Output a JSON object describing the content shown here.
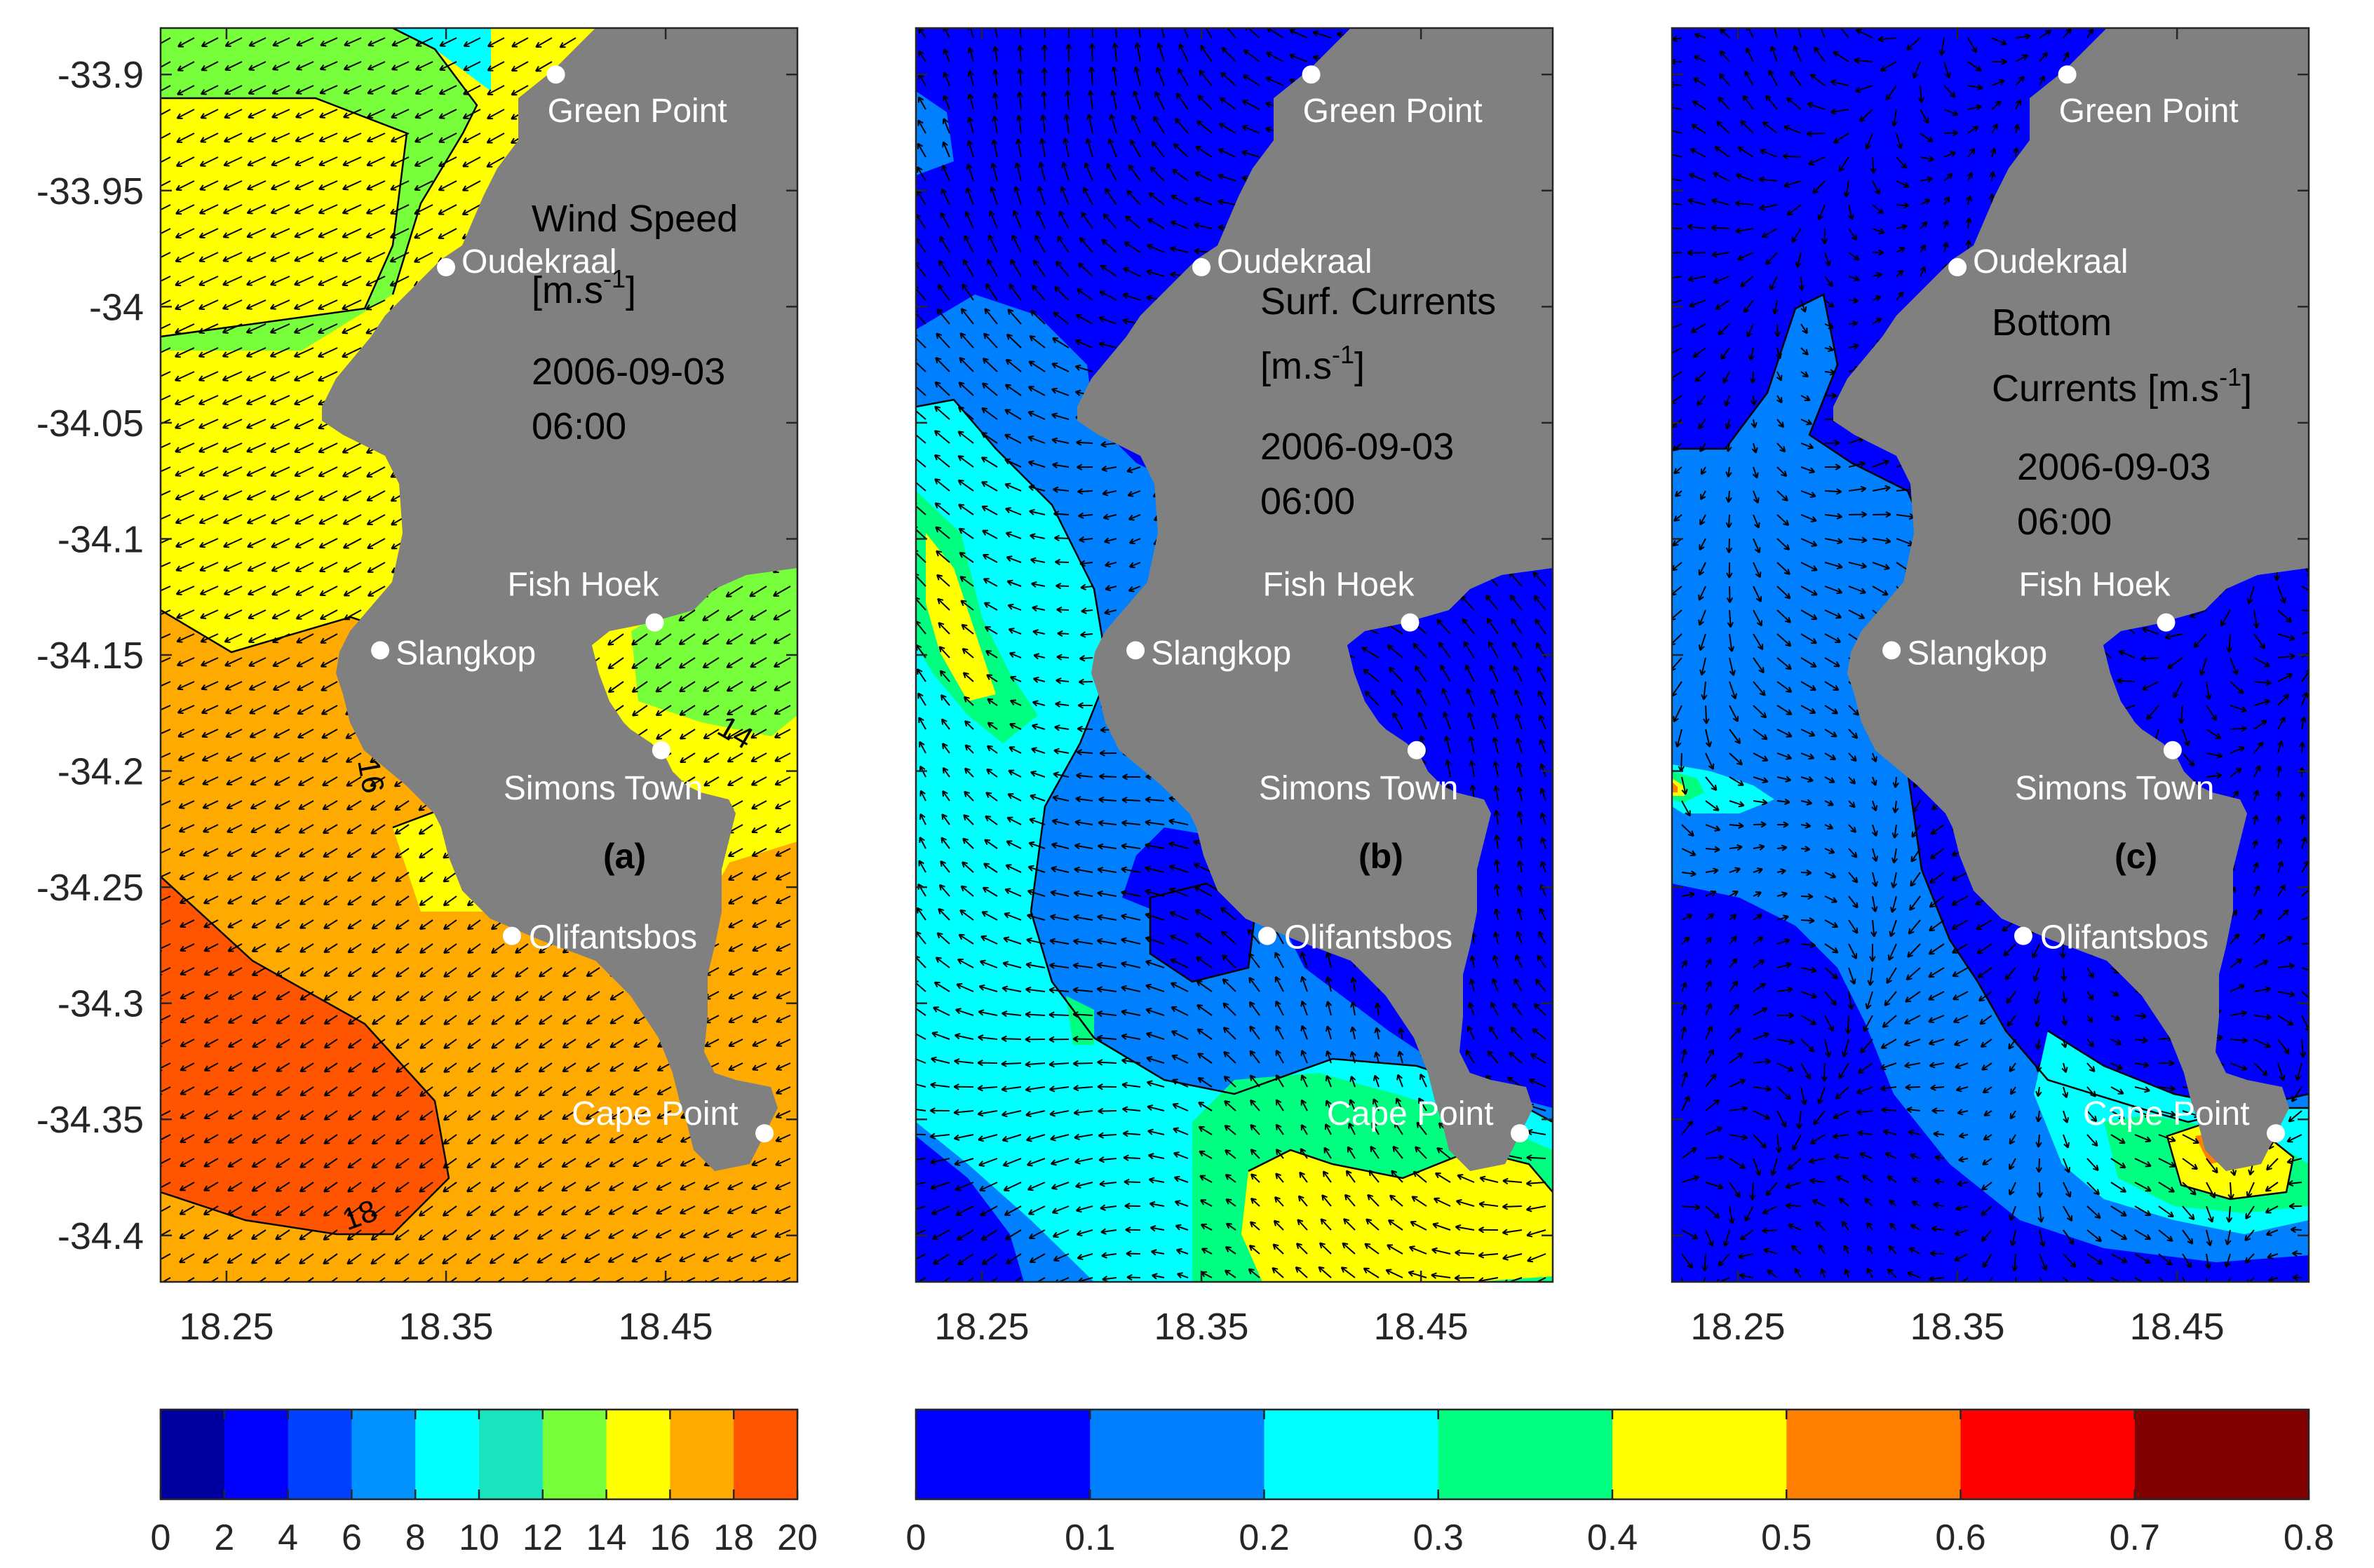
{
  "panels": [
    {
      "id": "a",
      "panel_label": "(a)",
      "field_title": [
        "Wind Speed",
        "[m.s",
        "-1",
        "]"
      ],
      "timestamp": [
        "2006-09-03",
        "06:00"
      ],
      "contour_labels": [
        "14",
        "16",
        "18"
      ],
      "colors": [
        "#77ff3c",
        "#ffff00",
        "#ffaa00",
        "#ff5500",
        "#00ffff",
        "#1ae3c0",
        "#00aaff"
      ]
    },
    {
      "id": "b",
      "panel_label": "(b)",
      "field_title": [
        "Surf. Currents",
        "[m.s",
        "-1",
        "]"
      ],
      "timestamp": [
        "2006-09-03",
        "06:00"
      ],
      "colors": [
        "#0000ff",
        "#0080ff",
        "#00ffff",
        "#00ff80",
        "#ffff00"
      ]
    },
    {
      "id": "c",
      "panel_label": "(c)",
      "field_title": [
        "Bottom",
        "Currents [m.s",
        "-1",
        "]"
      ],
      "timestamp": [
        "2006-09-03",
        "06:00"
      ],
      "colors": [
        "#0000ff",
        "#0080ff",
        "#00ffff",
        "#00ff80",
        "#ffff00",
        "#ff8000"
      ]
    }
  ],
  "places": [
    "Green Point",
    "Oudekraal",
    "Fish Hoek",
    "Slangkop",
    "Simons Town",
    "Olifantsbos",
    "Cape Point"
  ],
  "chart_data": {
    "type": "heatmap",
    "x_ticks": [
      "18.25",
      "18.35",
      "18.45"
    ],
    "y_ticks": [
      "-33.9",
      "-33.95",
      "-34",
      "-34.05",
      "-34.1",
      "-34.15",
      "-34.2",
      "-34.25",
      "-34.3",
      "-34.35",
      "-34.4"
    ],
    "xlim": [
      18.22,
      18.51
    ],
    "ylim": [
      -34.42,
      -33.88
    ],
    "land_color": "#808080",
    "colorbars": [
      {
        "ticks": [
          "0",
          "2",
          "4",
          "6",
          "8",
          "10",
          "12",
          "14",
          "16",
          "18",
          "20"
        ],
        "colors": [
          "#00009f",
          "#0000ff",
          "#0040ff",
          "#0090ff",
          "#00ffff",
          "#1ae3c0",
          "#77ff3c",
          "#ffff00",
          "#ffaa00",
          "#ff5500"
        ]
      },
      {
        "ticks": [
          "0",
          "0.1",
          "0.2",
          "0.3",
          "0.4",
          "0.5",
          "0.6",
          "0.7",
          "0.8"
        ],
        "colors": [
          "#0000ff",
          "#0080ff",
          "#00ffff",
          "#00ff80",
          "#ffff00",
          "#ff8000",
          "#ff0000",
          "#800000"
        ]
      }
    ]
  }
}
